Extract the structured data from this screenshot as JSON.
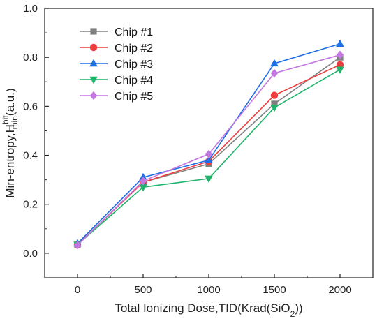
{
  "chart_data": {
    "type": "line",
    "x": [
      0,
      500,
      1000,
      1500,
      2000
    ],
    "xlabel": "Total Ionizing Dose,TID(Krad(SiO₂))",
    "ylabel": "Min-entropy,H_min^bit(a.u.)",
    "ylabel_parts": {
      "main": "Min-entropy,H",
      "sup": "bit",
      "sub": "min",
      "tail": "(a.u.)"
    },
    "xlabel_parts": {
      "main": "Total Ionizing Dose,TID(Krad(SiO",
      "sub": "2",
      "tail": "))"
    },
    "xlim": [
      -250,
      2250
    ],
    "ylim": [
      -0.1,
      1.0
    ],
    "xticks": [
      0,
      500,
      1000,
      1500,
      2000
    ],
    "yticks": [
      0.0,
      0.2,
      0.4,
      0.6,
      0.8,
      1.0
    ],
    "xtick_labels": [
      "0",
      "500",
      "1000",
      "1500",
      "2000"
    ],
    "ytick_labels": [
      "0.0",
      "0.2",
      "0.4",
      "0.6",
      "0.8",
      "1.0"
    ],
    "grid": false,
    "legend_position": "top-left",
    "series": [
      {
        "name": "Chip #1",
        "values": [
          0.035,
          0.29,
          0.365,
          0.61,
          0.8
        ],
        "color": "#808080",
        "marker": "square"
      },
      {
        "name": "Chip #2",
        "values": [
          0.035,
          0.29,
          0.375,
          0.645,
          0.77
        ],
        "color": "#f03c3c",
        "marker": "circle"
      },
      {
        "name": "Chip #3",
        "values": [
          0.04,
          0.31,
          0.38,
          0.775,
          0.855
        ],
        "color": "#1e6ee6",
        "marker": "triangle-up"
      },
      {
        "name": "Chip #4",
        "values": [
          0.035,
          0.27,
          0.305,
          0.595,
          0.75
        ],
        "color": "#1fb36b",
        "marker": "triangle-down"
      },
      {
        "name": "Chip #5",
        "values": [
          0.033,
          0.295,
          0.405,
          0.735,
          0.81
        ],
        "color": "#c377e0",
        "marker": "diamond"
      }
    ]
  }
}
